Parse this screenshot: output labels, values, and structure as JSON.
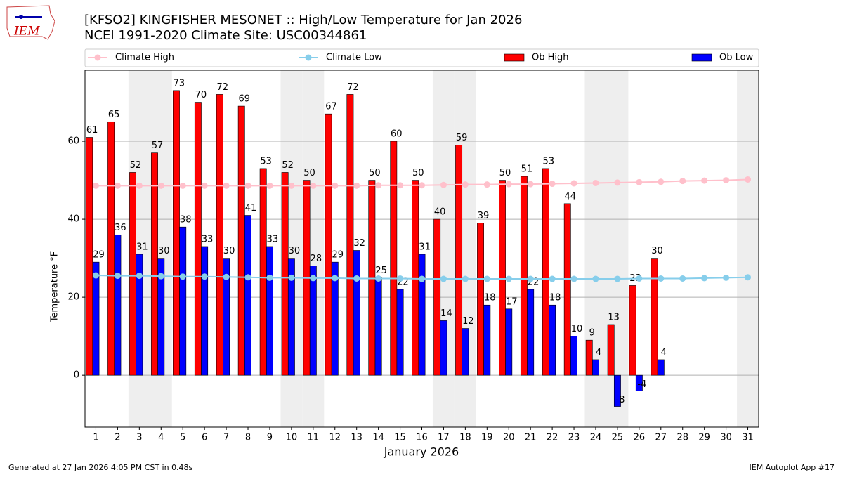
{
  "chart_data": {
    "type": "bar",
    "title": "[KFSO2] KINGFISHER MESONET :: High/Low Temperature for Jan 2026",
    "subtitle": "NCEI 1991-2020 Climate Site: USC00344861",
    "logo_text": "IEM",
    "ylabel": "Temperature °F",
    "xlabel": "January 2026",
    "footer_left": "Generated at 27 Jan 2026 4:05 PM CST in 0.48s",
    "footer_right": "IEM Autoplot App #17",
    "categories": [
      "1",
      "2",
      "3",
      "4",
      "5",
      "6",
      "7",
      "8",
      "9",
      "10",
      "11",
      "12",
      "13",
      "14",
      "15",
      "16",
      "17",
      "18",
      "19",
      "20",
      "21",
      "22",
      "23",
      "24",
      "25",
      "26",
      "27",
      "28",
      "29",
      "30",
      "31"
    ],
    "ylim": [
      -13.3,
      78.2
    ],
    "yticks": [
      0,
      20,
      40,
      60
    ],
    "grid": true,
    "series": [
      {
        "name": "Climate High",
        "type": "line",
        "color": "#ffc0cb",
        "values": [
          48.6,
          48.6,
          48.6,
          48.6,
          48.6,
          48.6,
          48.6,
          48.6,
          48.6,
          48.6,
          48.6,
          48.6,
          48.6,
          48.7,
          48.7,
          48.7,
          48.8,
          48.9,
          48.9,
          49.0,
          49.0,
          49.1,
          49.2,
          49.3,
          49.4,
          49.5,
          49.6,
          49.8,
          49.9,
          50.0,
          50.2
        ]
      },
      {
        "name": "Climate Low",
        "type": "line",
        "color": "#87ceeb",
        "values": [
          25.6,
          25.5,
          25.5,
          25.4,
          25.3,
          25.3,
          25.2,
          25.1,
          25.0,
          25.0,
          24.9,
          24.9,
          24.8,
          24.8,
          24.8,
          24.7,
          24.7,
          24.7,
          24.7,
          24.7,
          24.7,
          24.7,
          24.7,
          24.7,
          24.7,
          24.8,
          24.8,
          24.8,
          24.9,
          25.0,
          25.1
        ]
      },
      {
        "name": "Ob High",
        "type": "bar",
        "color": "#ff0000",
        "values": [
          61,
          65,
          52,
          57,
          73,
          70,
          72,
          69,
          53,
          52,
          50,
          67,
          72,
          50,
          60,
          50,
          40,
          59,
          39,
          50,
          51,
          53,
          44,
          9,
          13,
          23,
          30,
          null,
          null,
          null,
          null
        ]
      },
      {
        "name": "Ob Low",
        "type": "bar",
        "color": "#0000ff",
        "values": [
          29,
          36,
          31,
          30,
          38,
          33,
          30,
          41,
          33,
          30,
          28,
          29,
          32,
          25,
          22,
          31,
          14,
          12,
          18,
          17,
          22,
          18,
          10,
          4,
          -8,
          -4,
          4,
          null,
          null,
          null,
          null
        ]
      }
    ]
  }
}
